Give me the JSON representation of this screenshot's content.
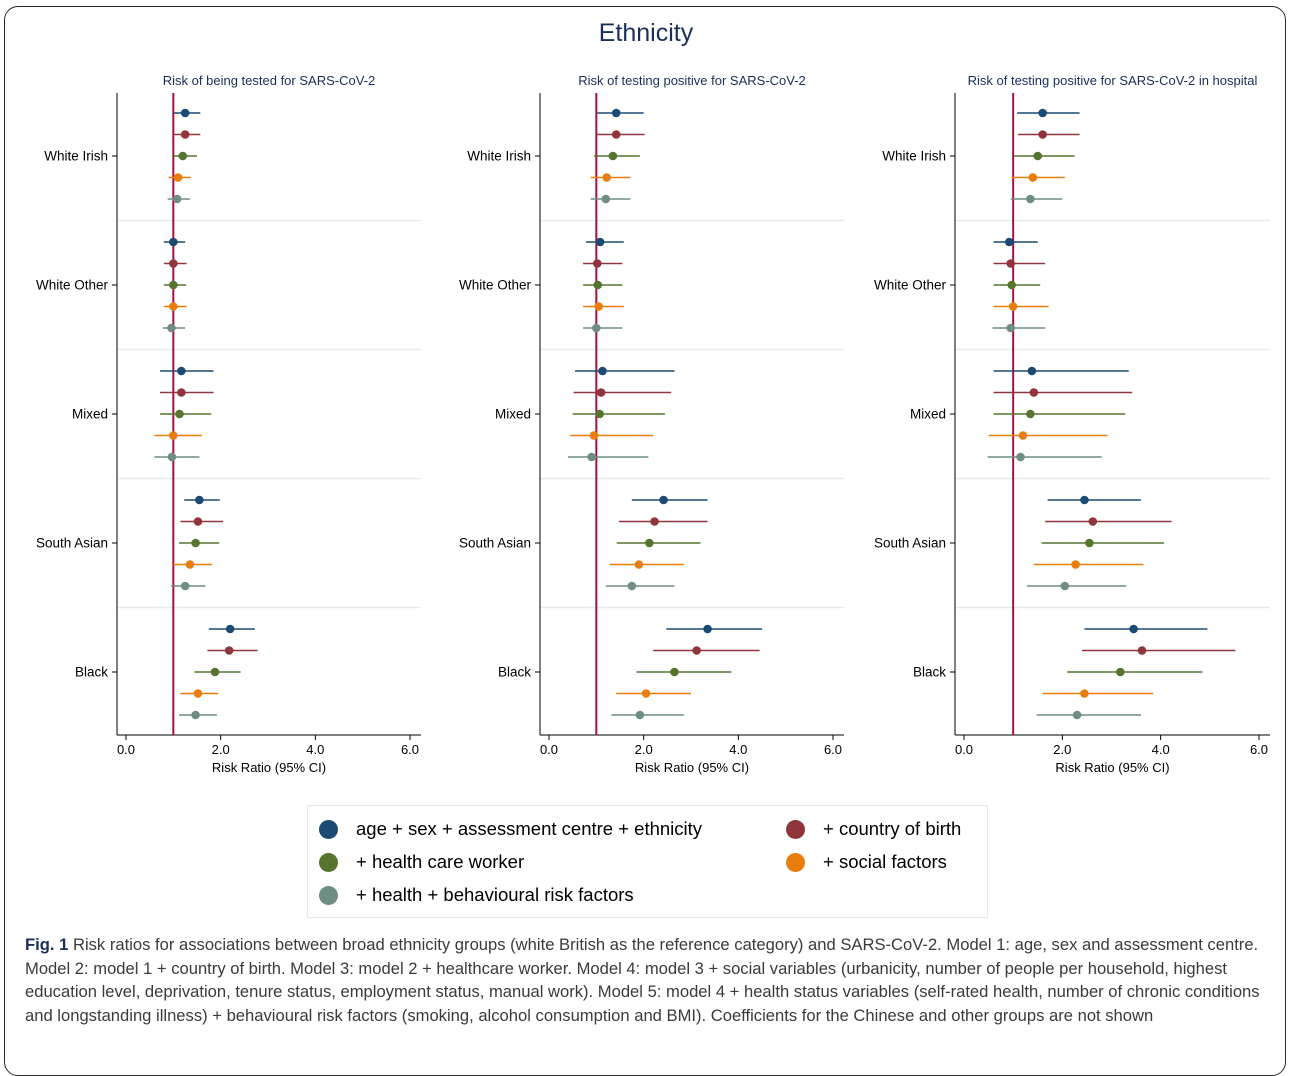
{
  "figure_title": "Ethnicity",
  "legend": [
    {
      "label": "age + sex + assessment centre + ethnicity",
      "color": "#1b4a72"
    },
    {
      "label": "+ country of birth",
      "color": "#90353b"
    },
    {
      "label": "+ health care worker",
      "color": "#55752f"
    },
    {
      "label": "+ social factors",
      "color": "#e87d0b"
    },
    {
      "label": "+ health + behavioural risk factors",
      "color": "#6e8e84"
    }
  ],
  "caption": {
    "label": "Fig. 1",
    "text": "Risk ratios for associations between broad ethnicity groups (white British as the reference category) and SARS-CoV-2. Model 1: age, sex and assessment centre. Model 2: model 1 + country of birth. Model 3: model 2 + healthcare worker. Model 4: model 3 + social variables (urbanicity, number of people per household, highest education level, deprivation, tenure status, employment status, manual work). Model 5: model 4 + health status variables (self-rated health, number of chronic conditions and longstanding illness) + behavioural risk factors (smoking, alcohol consumption and BMI). Coefficients for the Chinese and other groups are not shown"
  },
  "chart_data": [
    {
      "type": "scatter",
      "title": "Risk of being tested for SARS-CoV-2",
      "xlabel": "Risk Ratio (95% CI)",
      "xlim": [
        -0.2,
        6.2
      ],
      "xticks": [
        "0.0",
        "2.0",
        "4.0",
        "6.0"
      ],
      "reference_line": 1,
      "categories": [
        "White Irish",
        "White Other",
        "Mixed",
        "South Asian",
        "Black"
      ],
      "series": [
        {
          "name": "age + sex + assessment centre + ethnicity",
          "estimates": [
            1.25,
            1.0,
            1.17,
            1.55,
            2.2
          ],
          "lower": [
            1.0,
            0.8,
            0.72,
            1.23,
            1.75
          ],
          "upper": [
            1.57,
            1.25,
            1.85,
            1.98,
            2.72
          ]
        },
        {
          "name": "+ country of birth",
          "estimates": [
            1.25,
            1.0,
            1.17,
            1.52,
            2.18
          ],
          "lower": [
            1.0,
            0.8,
            0.72,
            1.15,
            1.72
          ],
          "upper": [
            1.57,
            1.28,
            1.85,
            2.05,
            2.78
          ]
        },
        {
          "name": "+ health care worker",
          "estimates": [
            1.2,
            1.0,
            1.13,
            1.47,
            1.88
          ],
          "lower": [
            0.97,
            0.8,
            0.72,
            1.12,
            1.45
          ],
          "upper": [
            1.5,
            1.27,
            1.8,
            1.97,
            2.42
          ]
        },
        {
          "name": "+ social factors",
          "estimates": [
            1.1,
            1.0,
            1.0,
            1.35,
            1.52
          ],
          "lower": [
            0.9,
            0.8,
            0.6,
            1.0,
            1.15
          ],
          "upper": [
            1.37,
            1.28,
            1.6,
            1.82,
            1.95
          ]
        },
        {
          "name": "+ health + behavioural risk factors",
          "estimates": [
            1.08,
            0.96,
            0.97,
            1.25,
            1.47
          ],
          "lower": [
            0.88,
            0.78,
            0.6,
            0.95,
            1.12
          ],
          "upper": [
            1.35,
            1.25,
            1.55,
            1.68,
            1.92
          ]
        }
      ]
    },
    {
      "type": "scatter",
      "title": "Risk of testing positive for SARS-CoV-2",
      "xlabel": "Risk Ratio (95% CI)",
      "xlim": [
        -0.2,
        6.2
      ],
      "xticks": [
        "0.0",
        "2.0",
        "4.0",
        "6.0"
      ],
      "reference_line": 1,
      "categories": [
        "White Irish",
        "White Other",
        "Mixed",
        "South Asian",
        "Black"
      ],
      "series": [
        {
          "name": "age + sex + assessment centre + ethnicity",
          "estimates": [
            1.42,
            1.08,
            1.13,
            2.42,
            3.35
          ],
          "lower": [
            1.02,
            0.78,
            0.55,
            1.75,
            2.48
          ],
          "upper": [
            2.0,
            1.58,
            2.65,
            3.35,
            4.5
          ]
        },
        {
          "name": "+ country of birth",
          "estimates": [
            1.42,
            1.02,
            1.1,
            2.23,
            3.12
          ],
          "lower": [
            1.0,
            0.72,
            0.52,
            1.48,
            2.2
          ],
          "upper": [
            2.02,
            1.55,
            2.58,
            3.35,
            4.45
          ]
        },
        {
          "name": "+ health care worker",
          "estimates": [
            1.35,
            1.03,
            1.07,
            2.12,
            2.65
          ],
          "lower": [
            0.95,
            0.72,
            0.5,
            1.43,
            1.85
          ],
          "upper": [
            1.92,
            1.55,
            2.45,
            3.2,
            3.85
          ]
        },
        {
          "name": "+ social factors",
          "estimates": [
            1.22,
            1.05,
            0.95,
            1.9,
            2.05
          ],
          "lower": [
            0.88,
            0.72,
            0.45,
            1.28,
            1.42
          ],
          "upper": [
            1.72,
            1.58,
            2.2,
            2.85,
            3.0
          ]
        },
        {
          "name": "+ health + behavioural risk factors",
          "estimates": [
            1.2,
            1.0,
            0.9,
            1.75,
            1.92
          ],
          "lower": [
            0.88,
            0.72,
            0.4,
            1.2,
            1.32
          ],
          "upper": [
            1.72,
            1.55,
            2.1,
            2.65,
            2.85
          ]
        }
      ]
    },
    {
      "type": "scatter",
      "title": "Risk of testing positive for SARS-CoV-2 in hospital",
      "xlabel": "Risk Ratio (95% CI)",
      "xlim": [
        -0.2,
        6.2
      ],
      "xticks": [
        "0.0",
        "2.0",
        "4.0",
        "6.0"
      ],
      "reference_line": 1,
      "categories": [
        "White Irish",
        "White Other",
        "Mixed",
        "South Asian",
        "Black"
      ],
      "series": [
        {
          "name": "age + sex + assessment centre + ethnicity",
          "estimates": [
            1.6,
            0.92,
            1.38,
            2.45,
            3.45
          ],
          "lower": [
            1.08,
            0.6,
            0.6,
            1.7,
            2.45
          ],
          "upper": [
            2.35,
            1.5,
            3.35,
            3.6,
            4.95
          ]
        },
        {
          "name": "+ country of birth",
          "estimates": [
            1.6,
            0.95,
            1.42,
            2.62,
            3.62
          ],
          "lower": [
            1.1,
            0.6,
            0.6,
            1.65,
            2.4
          ],
          "upper": [
            2.35,
            1.65,
            3.42,
            4.22,
            5.52
          ]
        },
        {
          "name": "+ health care worker",
          "estimates": [
            1.5,
            0.97,
            1.35,
            2.55,
            3.18
          ],
          "lower": [
            1.02,
            0.6,
            0.6,
            1.58,
            2.1
          ],
          "upper": [
            2.25,
            1.55,
            3.28,
            4.07,
            4.85
          ]
        },
        {
          "name": "+ social factors",
          "estimates": [
            1.4,
            1.0,
            1.2,
            2.27,
            2.45
          ],
          "lower": [
            0.97,
            0.6,
            0.5,
            1.42,
            1.6
          ],
          "upper": [
            2.05,
            1.72,
            2.92,
            3.65,
            3.85
          ]
        },
        {
          "name": "+ health + behavioural risk factors",
          "estimates": [
            1.35,
            0.95,
            1.15,
            2.05,
            2.3
          ],
          "lower": [
            0.95,
            0.58,
            0.48,
            1.28,
            1.48
          ],
          "upper": [
            2.0,
            1.65,
            2.8,
            3.3,
            3.6
          ]
        }
      ]
    }
  ]
}
